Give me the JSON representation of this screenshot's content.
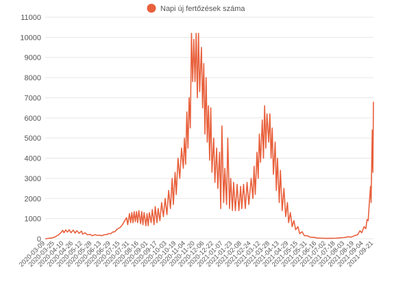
{
  "chart_data": {
    "type": "line",
    "legend": {
      "label": "Napi új fertőzések száma",
      "position": "top-center"
    },
    "series": [
      {
        "name": "Napi új fertőzések száma",
        "color": "#E8603C",
        "points": [
          [
            "2020-03-09",
            0
          ],
          [
            "2020-03-20",
            40
          ],
          [
            "2020-03-25",
            80
          ],
          [
            "2020-04-01",
            200
          ],
          [
            "2020-04-05",
            310
          ],
          [
            "2020-04-08",
            420
          ],
          [
            "2020-04-10",
            300
          ],
          [
            "2020-04-13",
            440
          ],
          [
            "2020-04-16",
            330
          ],
          [
            "2020-04-19",
            450
          ],
          [
            "2020-04-22",
            300
          ],
          [
            "2020-04-26",
            430
          ],
          [
            "2020-04-29",
            280
          ],
          [
            "2020-05-02",
            400
          ],
          [
            "2020-05-06",
            270
          ],
          [
            "2020-05-10",
            380
          ],
          [
            "2020-05-12",
            230
          ],
          [
            "2020-05-16",
            300
          ],
          [
            "2020-05-20",
            200
          ],
          [
            "2020-05-25",
            220
          ],
          [
            "2020-05-28",
            150
          ],
          [
            "2020-06-02",
            200
          ],
          [
            "2020-06-06",
            170
          ],
          [
            "2020-06-10",
            180
          ],
          [
            "2020-06-13",
            150
          ],
          [
            "2020-06-18",
            200
          ],
          [
            "2020-06-22",
            210
          ],
          [
            "2020-06-26",
            260
          ],
          [
            "2020-06-29",
            250
          ],
          [
            "2020-07-02",
            330
          ],
          [
            "2020-07-06",
            350
          ],
          [
            "2020-07-10",
            480
          ],
          [
            "2020-07-15",
            560
          ],
          [
            "2020-07-19",
            700
          ],
          [
            "2020-07-23",
            900
          ],
          [
            "2020-07-26",
            1050
          ],
          [
            "2020-07-28",
            700
          ],
          [
            "2020-07-31",
            1250
          ],
          [
            "2020-08-02",
            800
          ],
          [
            "2020-08-04",
            1300
          ],
          [
            "2020-08-06",
            800
          ],
          [
            "2020-08-08",
            1350
          ],
          [
            "2020-08-10",
            850
          ],
          [
            "2020-08-12",
            1350
          ],
          [
            "2020-08-14",
            800
          ],
          [
            "2020-08-16",
            1400
          ],
          [
            "2020-08-19",
            750
          ],
          [
            "2020-08-21",
            1350
          ],
          [
            "2020-08-23",
            700
          ],
          [
            "2020-08-25",
            1300
          ],
          [
            "2020-08-28",
            650
          ],
          [
            "2020-08-30",
            1250
          ],
          [
            "2020-09-01",
            650
          ],
          [
            "2020-09-03",
            1300
          ],
          [
            "2020-09-06",
            800
          ],
          [
            "2020-09-08",
            1450
          ],
          [
            "2020-09-11",
            700
          ],
          [
            "2020-09-13",
            1600
          ],
          [
            "2020-09-16",
            800
          ],
          [
            "2020-09-18",
            1500
          ],
          [
            "2020-09-21",
            900
          ],
          [
            "2020-09-24",
            1800
          ],
          [
            "2020-09-27",
            1100
          ],
          [
            "2020-09-30",
            2000
          ],
          [
            "2020-10-03",
            1200
          ],
          [
            "2020-10-06",
            2400
          ],
          [
            "2020-10-09",
            1500
          ],
          [
            "2020-10-12",
            3000
          ],
          [
            "2020-10-14",
            1700
          ],
          [
            "2020-10-17",
            3300
          ],
          [
            "2020-10-19",
            2200
          ],
          [
            "2020-10-22",
            4000
          ],
          [
            "2020-10-25",
            3000
          ],
          [
            "2020-10-28",
            4500
          ],
          [
            "2020-10-31",
            3500
          ],
          [
            "2020-11-02",
            5000
          ],
          [
            "2020-11-04",
            3700
          ],
          [
            "2020-11-06",
            6300
          ],
          [
            "2020-11-08",
            4500
          ],
          [
            "2020-11-10",
            7000
          ],
          [
            "2020-11-12",
            5500
          ],
          [
            "2020-11-14",
            10200
          ],
          [
            "2020-11-16",
            7800
          ],
          [
            "2020-11-18",
            9900
          ],
          [
            "2020-11-20",
            7800
          ],
          [
            "2020-11-22",
            10200
          ],
          [
            "2020-11-24",
            7000
          ],
          [
            "2020-11-26",
            10200
          ],
          [
            "2020-11-28",
            7300
          ],
          [
            "2020-12-01",
            9500
          ],
          [
            "2020-12-03",
            6500
          ],
          [
            "2020-12-05",
            8700
          ],
          [
            "2020-12-07",
            5200
          ],
          [
            "2020-12-09",
            8000
          ],
          [
            "2020-12-11",
            4800
          ],
          [
            "2020-12-13",
            6600
          ],
          [
            "2020-12-15",
            3900
          ],
          [
            "2020-12-17",
            6500
          ],
          [
            "2020-12-19",
            3300
          ],
          [
            "2020-12-22",
            5000
          ],
          [
            "2020-12-24",
            2800
          ],
          [
            "2020-12-27",
            4500
          ],
          [
            "2020-12-29",
            2500
          ],
          [
            "2021-01-01",
            4300
          ],
          [
            "2021-01-03",
            1500
          ],
          [
            "2021-01-05",
            5600
          ],
          [
            "2021-01-08",
            1800
          ],
          [
            "2021-01-10",
            3500
          ],
          [
            "2021-01-13",
            1700
          ],
          [
            "2021-01-15",
            5000
          ],
          [
            "2021-01-18",
            1500
          ],
          [
            "2021-01-20",
            3000
          ],
          [
            "2021-01-23",
            1400
          ],
          [
            "2021-01-25",
            2800
          ],
          [
            "2021-01-28",
            1400
          ],
          [
            "2021-01-31",
            2700
          ],
          [
            "2021-02-03",
            1400
          ],
          [
            "2021-02-06",
            2600
          ],
          [
            "2021-02-08",
            1500
          ],
          [
            "2021-02-11",
            2700
          ],
          [
            "2021-02-14",
            1500
          ],
          [
            "2021-02-17",
            2800
          ],
          [
            "2021-02-20",
            1700
          ],
          [
            "2021-02-24",
            3000
          ],
          [
            "2021-02-27",
            2000
          ],
          [
            "2021-03-01",
            3600
          ],
          [
            "2021-03-03",
            2200
          ],
          [
            "2021-03-06",
            4300
          ],
          [
            "2021-03-08",
            3000
          ],
          [
            "2021-03-10",
            5200
          ],
          [
            "2021-03-12",
            3800
          ],
          [
            "2021-03-15",
            5900
          ],
          [
            "2021-03-17",
            4000
          ],
          [
            "2021-03-19",
            6600
          ],
          [
            "2021-03-21",
            4500
          ],
          [
            "2021-03-23",
            6200
          ],
          [
            "2021-03-26",
            4800
          ],
          [
            "2021-03-28",
            6200
          ],
          [
            "2021-03-30",
            4000
          ],
          [
            "2021-04-01",
            5500
          ],
          [
            "2021-04-03",
            3200
          ],
          [
            "2021-04-06",
            4800
          ],
          [
            "2021-04-08",
            2400
          ],
          [
            "2021-04-10",
            4000
          ],
          [
            "2021-04-13",
            1800
          ],
          [
            "2021-04-15",
            3400
          ],
          [
            "2021-04-18",
            1400
          ],
          [
            "2021-04-21",
            2500
          ],
          [
            "2021-04-24",
            1100
          ],
          [
            "2021-04-27",
            1800
          ],
          [
            "2021-04-29",
            800
          ],
          [
            "2021-05-02",
            1300
          ],
          [
            "2021-05-05",
            600
          ],
          [
            "2021-05-08",
            900
          ],
          [
            "2021-05-11",
            450
          ],
          [
            "2021-05-15",
            600
          ],
          [
            "2021-05-18",
            250
          ],
          [
            "2021-05-22",
            350
          ],
          [
            "2021-05-26",
            150
          ],
          [
            "2021-05-31",
            150
          ],
          [
            "2021-06-05",
            80
          ],
          [
            "2021-06-12",
            70
          ],
          [
            "2021-06-16",
            40
          ],
          [
            "2021-06-24",
            30
          ],
          [
            "2021-07-02",
            20
          ],
          [
            "2021-07-12",
            25
          ],
          [
            "2021-07-19",
            30
          ],
          [
            "2021-07-26",
            50
          ],
          [
            "2021-08-02",
            60
          ],
          [
            "2021-08-09",
            100
          ],
          [
            "2021-08-14",
            80
          ],
          [
            "2021-08-20",
            160
          ],
          [
            "2021-08-25",
            200
          ],
          [
            "2021-08-29",
            400
          ],
          [
            "2021-09-01",
            300
          ],
          [
            "2021-09-05",
            600
          ],
          [
            "2021-09-08",
            500
          ],
          [
            "2021-09-10",
            950
          ],
          [
            "2021-09-12",
            900
          ],
          [
            "2021-09-14",
            1800
          ],
          [
            "2021-09-16",
            2600
          ],
          [
            "2021-09-17",
            1800
          ],
          [
            "2021-09-18",
            3700
          ],
          [
            "2021-09-19",
            5400
          ],
          [
            "2021-09-20",
            3300
          ],
          [
            "2021-09-21",
            6800
          ]
        ]
      }
    ],
    "x_ticks": [
      "2020-03-09",
      "2020-03-25",
      "2020-04-10",
      "2020-04-26",
      "2020-05-12",
      "2020-05-28",
      "2020-06-13",
      "2020-06-29",
      "2020-07-15",
      "2020-07-31",
      "2020-08-16",
      "2020-09-01",
      "2020-09-17",
      "2020-10-03",
      "2020-10-19",
      "2020-11-04",
      "2020-11-20",
      "2020-12-06",
      "2020-12-22",
      "2021-01-07",
      "2021-01-23",
      "2021-02-08",
      "2021-02-24",
      "2021-03-12",
      "2021-03-28",
      "2021-04-13",
      "2021-04-29",
      "2021-05-15",
      "2021-05-31",
      "2021-06-16",
      "2021-07-02",
      "2021-07-18",
      "2021-08-03",
      "2021-08-19",
      "2021-09-04",
      "2021-09-21"
    ],
    "y_ticks": [
      0,
      1000,
      2000,
      3000,
      4000,
      5000,
      6000,
      7000,
      8000,
      9000,
      10000,
      11000
    ],
    "ylim": [
      0,
      11000
    ],
    "xlim": [
      "2020-03-09",
      "2021-09-21"
    ],
    "grid": true
  }
}
